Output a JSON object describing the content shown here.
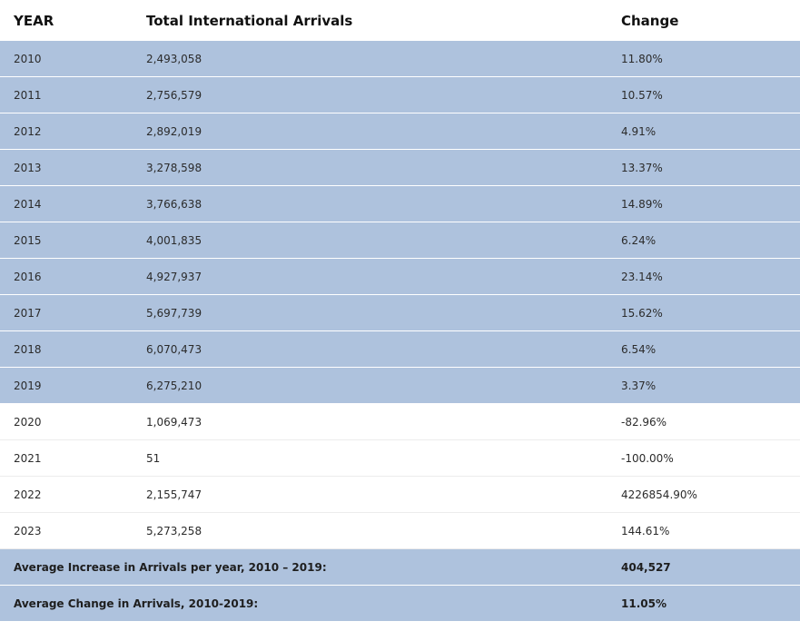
{
  "table": {
    "headers": [
      "YEAR",
      "Total International Arrivals",
      "Change"
    ],
    "rows": [
      {
        "year": "2010",
        "arrivals": "2,493,058",
        "change": "11.80%",
        "shaded": true
      },
      {
        "year": "2011",
        "arrivals": "2,756,579",
        "change": "10.57%",
        "shaded": true
      },
      {
        "year": "2012",
        "arrivals": "2,892,019",
        "change": "4.91%",
        "shaded": true
      },
      {
        "year": "2013",
        "arrivals": "3,278,598",
        "change": "13.37%",
        "shaded": true
      },
      {
        "year": "2014",
        "arrivals": "3,766,638",
        "change": "14.89%",
        "shaded": true
      },
      {
        "year": "2015",
        "arrivals": "4,001,835",
        "change": "6.24%",
        "shaded": true
      },
      {
        "year": "2016",
        "arrivals": "4,927,937",
        "change": "23.14%",
        "shaded": true
      },
      {
        "year": "2017",
        "arrivals": "5,697,739",
        "change": "15.62%",
        "shaded": true
      },
      {
        "year": "2018",
        "arrivals": "6,070,473",
        "change": "6.54%",
        "shaded": true
      },
      {
        "year": "2019",
        "arrivals": "6,275,210",
        "change": "3.37%",
        "shaded": true
      },
      {
        "year": "2020",
        "arrivals": "1,069,473",
        "change": "-82.96%",
        "shaded": false
      },
      {
        "year": "2021",
        "arrivals": "51",
        "change": "-100.00%",
        "shaded": false
      },
      {
        "year": "2022",
        "arrivals": "2,155,747",
        "change": "4226854.90%",
        "shaded": false
      },
      {
        "year": "2023",
        "arrivals": "5,273,258",
        "change": "144.61%",
        "shaded": false
      }
    ],
    "summary": [
      {
        "label": "Average Increase in Arrivals per year, 2010 – 2019:",
        "value": "404,527"
      },
      {
        "label": "Average Change in Arrivals, 2010-2019:",
        "value": "11.05%"
      }
    ]
  },
  "colors": {
    "shaded_row": "#aec2dd",
    "plain_row": "#ffffff"
  }
}
